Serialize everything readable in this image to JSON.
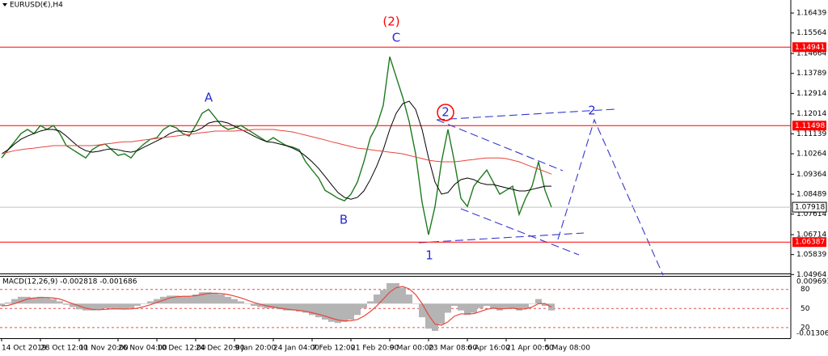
{
  "chart_data": {
    "type": "line",
    "title": "EURUSD(€),H4",
    "categories": [
      "14 Oct 2019",
      null,
      null,
      null,
      null,
      null,
      "28 Oct 12:00",
      null,
      null,
      null,
      null,
      null,
      "11 Nov 20:00",
      null,
      null,
      null,
      null,
      null,
      "26 Nov 04:00",
      null,
      null,
      null,
      null,
      null,
      "10 Dec 12:00",
      null,
      null,
      null,
      null,
      null,
      "24 Dec 20:00",
      null,
      null,
      null,
      null,
      null,
      "9 Jan 20:00",
      null,
      null,
      null,
      null,
      null,
      "24 Jan 04:00",
      null,
      null,
      null,
      null,
      null,
      "7 Feb 12:00",
      null,
      null,
      null,
      null,
      null,
      "21 Feb 20:00",
      null,
      null,
      null,
      null,
      null,
      "9 Mar 00:00",
      null,
      null,
      null,
      null,
      null,
      "23 Mar 08:00",
      null,
      null,
      null,
      null,
      null,
      "6 Apr 16:00",
      null,
      null,
      null,
      null,
      null,
      "21 Apr 00:00",
      null,
      null,
      null,
      null,
      null,
      "5 May 08:00",
      null
    ],
    "series": [
      {
        "color": "#1f7a1f",
        "values": [
          1.1008,
          1.1044,
          1.1079,
          1.1115,
          1.1133,
          1.1115,
          1.115,
          1.1133,
          1.115,
          1.1115,
          1.1062,
          1.1044,
          1.1026,
          1.1008,
          1.1044,
          1.1062,
          1.1069,
          1.1044,
          1.1019,
          1.1026,
          1.1008,
          1.1044,
          1.1069,
          1.109,
          1.1097,
          1.1133,
          1.115,
          1.114,
          1.1115,
          1.1104,
          1.115,
          1.1204,
          1.1221,
          1.1186,
          1.115,
          1.1133,
          1.114,
          1.115,
          1.1133,
          1.1115,
          1.1097,
          1.1079,
          1.1097,
          1.1079,
          1.1062,
          1.1055,
          1.1044,
          1.0991,
          1.0955,
          1.092,
          1.0866,
          1.0849,
          1.0831,
          1.082,
          1.0849,
          1.0902,
          1.0991,
          1.1097,
          1.115,
          1.1239,
          1.1452,
          1.1363,
          1.1275,
          1.1168,
          1.1026,
          1.0813,
          1.0671,
          1.0795,
          1.0991,
          1.1133,
          1.0991,
          1.0831,
          1.0795,
          1.0884,
          1.092,
          1.0955,
          1.0902,
          1.0849,
          1.0866,
          1.0884,
          1.076,
          1.0831,
          1.0884,
          1.0991,
          1.0866,
          1.0792
        ]
      },
      {
        "color": "#000000",
        "values": [
          1.1026,
          1.1044,
          1.1069,
          1.109,
          1.1104,
          1.1115,
          1.1126,
          1.1133,
          1.1133,
          1.1126,
          1.1104,
          1.1079,
          1.1055,
          1.104,
          1.1033,
          1.1037,
          1.1044,
          1.1048,
          1.1044,
          1.1037,
          1.1033,
          1.104,
          1.1055,
          1.1069,
          1.1083,
          1.1097,
          1.1115,
          1.1126,
          1.1126,
          1.1122,
          1.1126,
          1.114,
          1.1161,
          1.1168,
          1.1168,
          1.1161,
          1.1147,
          1.1133,
          1.1119,
          1.1104,
          1.109,
          1.1079,
          1.1076,
          1.1069,
          1.1062,
          1.1051,
          1.1037,
          1.1016,
          1.0991,
          1.0962,
          1.0927,
          1.0891,
          1.0856,
          1.0835,
          1.0827,
          1.0835,
          1.0863,
          1.0913,
          1.0973,
          1.1044,
          1.1133,
          1.1204,
          1.1246,
          1.1257,
          1.1221,
          1.1133,
          1.1008,
          1.0902,
          1.0849,
          1.0856,
          1.0891,
          1.0913,
          1.092,
          1.0913,
          1.0898,
          1.0891,
          1.0891,
          1.0884,
          1.0877,
          1.087,
          1.0863,
          1.0863,
          1.087,
          1.0877,
          1.0884,
          1.0884
        ]
      },
      {
        "color": "#e8453c",
        "values": [
          1.1026,
          1.1033,
          1.104,
          1.1044,
          1.1048,
          1.1051,
          1.1055,
          1.1058,
          1.1062,
          1.1062,
          1.1062,
          1.1062,
          1.1062,
          1.1062,
          1.1062,
          1.1065,
          1.1069,
          1.1072,
          1.1076,
          1.1079,
          1.1079,
          1.1083,
          1.1087,
          1.109,
          1.1094,
          1.1097,
          1.1101,
          1.1104,
          1.1108,
          1.1111,
          1.1115,
          1.1119,
          1.1122,
          1.1126,
          1.1126,
          1.1126,
          1.1126,
          1.1129,
          1.1129,
          1.1133,
          1.1133,
          1.1133,
          1.1133,
          1.1129,
          1.1126,
          1.1122,
          1.1115,
          1.1108,
          1.1101,
          1.1094,
          1.1087,
          1.1079,
          1.1072,
          1.1065,
          1.1058,
          1.1051,
          1.1048,
          1.1044,
          1.104,
          1.1037,
          1.1033,
          1.103,
          1.1026,
          1.1019,
          1.1012,
          1.1005,
          1.0998,
          1.0994,
          1.0991,
          1.0991,
          1.0991,
          1.0994,
          1.0998,
          1.1001,
          1.1005,
          1.1008,
          1.1008,
          1.1008,
          1.1005,
          1.0998,
          1.0991,
          1.098,
          1.0969,
          1.0959,
          1.0948,
          1.0937
        ]
      }
    ],
    "ylim": [
      1.0501,
      1.1701
    ],
    "yticks": [
      1.16439,
      1.15564,
      1.14664,
      1.13789,
      1.12914,
      1.12014,
      1.11139,
      1.10264,
      1.09364,
      1.08489,
      1.07614,
      1.06714,
      1.05839,
      1.04964
    ],
    "hlines": [
      {
        "value": 1.14941,
        "color": "#ff0000"
      },
      {
        "value": 1.11498,
        "color": "#ff0000"
      },
      {
        "value": 1.06387,
        "color": "#ff0000"
      },
      {
        "value": 1.07918,
        "color": "#c0c0c0"
      }
    ],
    "annotations": [
      {
        "text": "(2)",
        "color": "#ff0000"
      },
      {
        "text": "C",
        "color": "#2a2ad0"
      },
      {
        "text": "A",
        "color": "#2a2ad0"
      },
      {
        "text": "B",
        "color": "#2a2ad0"
      },
      {
        "text": "1",
        "color": "#2a2ad0"
      },
      {
        "text": "2",
        "color": "#2a2ad0"
      },
      {
        "text": "2",
        "color": "#2a2ad0"
      }
    ],
    "macd": {
      "label": "MACD(12,26,9) -0.002818 -0.001686",
      "ylim": [
        -0.013064,
        0.009691
      ],
      "yticks": [
        0.009691,
        -0.013064
      ],
      "y2lim": [
        0,
        100
      ],
      "y2ticks": [
        80,
        50,
        20
      ],
      "histogram": {
        "color": "#b4b4b4",
        "values": [
          -0.001,
          0.0005,
          0.002,
          0.003,
          0.003,
          0.0025,
          0.003,
          0.0025,
          0.002,
          0.001,
          -0.0005,
          -0.0015,
          -0.0025,
          -0.003,
          -0.003,
          -0.0025,
          -0.002,
          -0.002,
          -0.0025,
          -0.0025,
          -0.002,
          -0.001,
          0,
          0.001,
          0.002,
          0.003,
          0.0035,
          0.0035,
          0.003,
          0.003,
          0.004,
          0.005,
          0.005,
          0.0045,
          0.004,
          0.003,
          0.002,
          0.001,
          0,
          -0.001,
          -0.0015,
          -0.002,
          -0.002,
          -0.0025,
          -0.003,
          -0.003,
          -0.0035,
          -0.004,
          -0.005,
          -0.006,
          -0.007,
          -0.008,
          -0.0085,
          -0.008,
          -0.007,
          -0.005,
          -0.002,
          0.001,
          0.004,
          0.006,
          0.009,
          0.009,
          0.007,
          0.004,
          0,
          -0.006,
          -0.011,
          -0.012,
          -0.009,
          -0.004,
          -0.001,
          -0.003,
          -0.005,
          -0.004,
          -0.002,
          -0.001,
          -0.002,
          -0.003,
          -0.002,
          -0.002,
          -0.003,
          -0.002,
          0,
          0.002,
          -0.001,
          -0.003
        ]
      },
      "signal": {
        "color": "#e8453c",
        "values": [
          -0.001,
          -0.0008,
          0,
          0.001,
          0.002,
          0.0025,
          0.0027,
          0.0027,
          0.0025,
          0.002,
          0.001,
          0,
          -0.001,
          -0.002,
          -0.0025,
          -0.0027,
          -0.0025,
          -0.0023,
          -0.0023,
          -0.0024,
          -0.0023,
          -0.002,
          -0.0013,
          -0.0005,
          0.0005,
          0.0015,
          0.0025,
          0.003,
          0.0032,
          0.0032,
          0.0035,
          0.004,
          0.0045,
          0.0046,
          0.0044,
          0.004,
          0.0033,
          0.0025,
          0.0015,
          0.0005,
          -0.0003,
          -0.001,
          -0.0015,
          -0.002,
          -0.0024,
          -0.0027,
          -0.003,
          -0.0034,
          -0.004,
          -0.0047,
          -0.0055,
          -0.0064,
          -0.0072,
          -0.0076,
          -0.0075,
          -0.007,
          -0.0055,
          -0.0035,
          -0.001,
          0.002,
          0.005,
          0.007,
          0.0075,
          0.0065,
          0.004,
          0,
          -0.005,
          -0.009,
          -0.0095,
          -0.008,
          -0.0055,
          -0.0045,
          -0.0045,
          -0.0044,
          -0.0035,
          -0.0025,
          -0.002,
          -0.0023,
          -0.0022,
          -0.002,
          -0.0024,
          -0.0023,
          -0.0015,
          0,
          0,
          -0.0015
        ]
      }
    }
  }
}
